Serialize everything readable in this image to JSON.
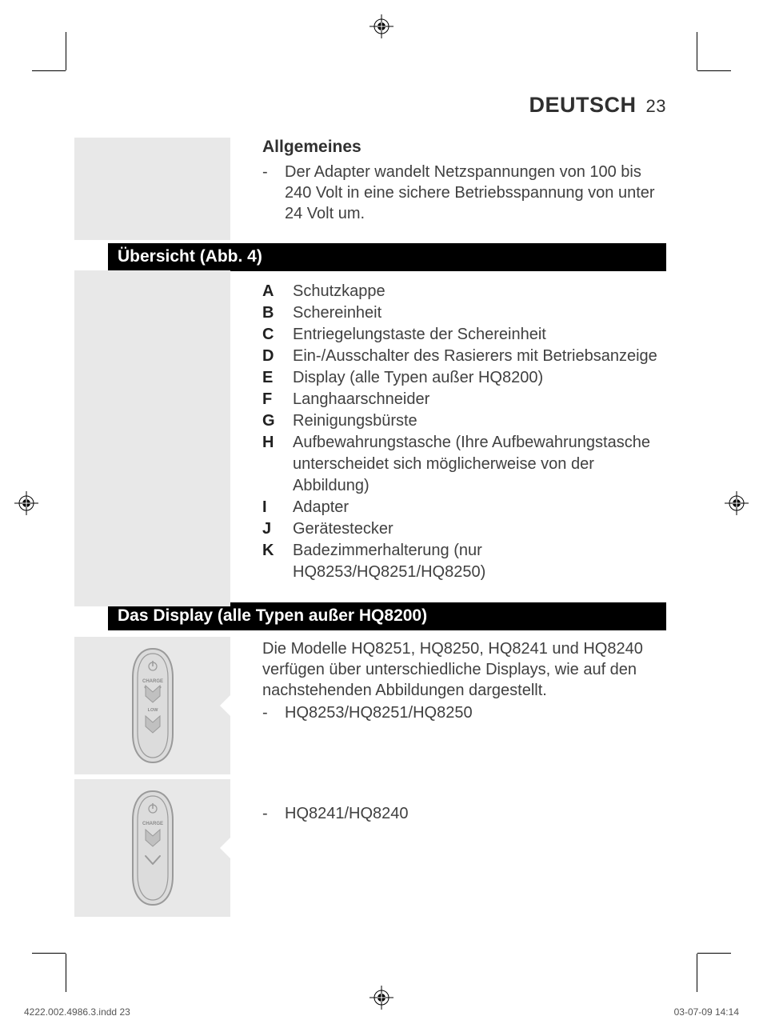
{
  "header": {
    "language": "DEUTSCH",
    "page_number": "23"
  },
  "section_allgemeines": {
    "title": "Allgemeines",
    "bullet_dash": "-",
    "bullet_text": "Der Adapter wandelt Netzspannungen von 100 bis 240 Volt in eine sichere Betriebsspannung von unter 24 Volt um."
  },
  "section_uebersicht": {
    "bar_title": "Übersicht (Abb. 4)",
    "items": [
      {
        "letter": "A",
        "text": "Schutzkappe"
      },
      {
        "letter": "B",
        "text": "Schereinheit"
      },
      {
        "letter": "C",
        "text": "Entriegelungstaste der Schereinheit"
      },
      {
        "letter": "D",
        "text": "Ein-/Ausschalter des Rasierers mit Betriebsanzeige"
      },
      {
        "letter": "E",
        "text": "Display (alle Typen außer HQ8200)"
      },
      {
        "letter": "F",
        "text": "Langhaarschneider"
      },
      {
        "letter": "G",
        "text": "Reinigungsbürste"
      },
      {
        "letter": "H",
        "text": "Aufbewahrungstasche (Ihre Aufbewahrungstasche unterscheidet sich möglicherweise von der Abbildung)"
      },
      {
        "letter": "I",
        "text": "Adapter"
      },
      {
        "letter": "J",
        "text": "Gerätestecker"
      },
      {
        "letter": "K",
        "text": "Badezimmerhalterung (nur HQ8253/HQ8251/HQ8250)"
      }
    ]
  },
  "section_display": {
    "bar_title": "Das Display (alle Typen außer HQ8200)",
    "intro": "Die Modelle HQ8251, HQ8250, HQ8241 und HQ8240 verfügen über unterschiedliche Displays, wie auf den nachstehenden Abbildungen dargestellt.",
    "bullets": [
      {
        "dash": "-",
        "text": "HQ8253/HQ8251/HQ8250"
      },
      {
        "dash": "-",
        "text": "HQ8241/HQ8240"
      }
    ]
  },
  "figures": {
    "fig1": {
      "outline": "#9a9a9a",
      "fill": "#e8e8e8",
      "label_charge": "CHARGE",
      "label_low": "LOW"
    },
    "fig2": {
      "outline": "#9a9a9a",
      "fill": "#e8e8e8",
      "label_charge": "CHARGE"
    }
  },
  "footer": {
    "left": "4222.002.4986.3.indd   23",
    "right": "03-07-09   14:14"
  },
  "colors": {
    "text": "#404040",
    "bold": "#202020",
    "bar_bg": "#000000",
    "bar_fg": "#ffffff",
    "grey_box": "#e8e8e8",
    "page_bg": "#ffffff"
  }
}
